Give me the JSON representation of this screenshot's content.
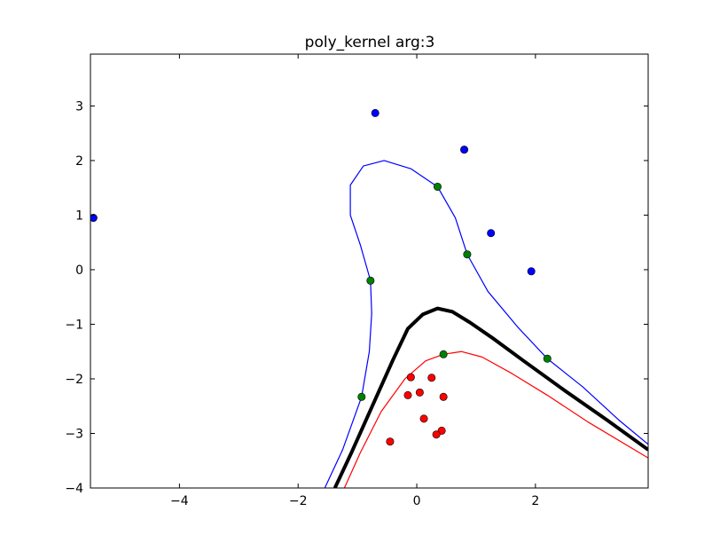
{
  "chart_data": {
    "type": "scatter",
    "title": "poly_kernel arg:3",
    "xlabel": "",
    "ylabel": "",
    "xlim": [
      -5.5,
      3.9
    ],
    "ylim": [
      -4,
      3.95
    ],
    "grid": false,
    "x_ticks": [
      -4,
      -2,
      0,
      2
    ],
    "x_tick_labels": [
      "−4",
      "−2",
      "0",
      "2"
    ],
    "y_ticks": [
      -4,
      -3,
      -2,
      -1,
      0,
      1,
      2,
      3
    ],
    "y_tick_labels": [
      "−4",
      "−3",
      "−2",
      "−1",
      "0",
      "1",
      "2",
      "3"
    ],
    "colors": {
      "class_positive": "#0000ff",
      "class_negative": "#ff0000",
      "support_vector": "#008000",
      "decision_boundary": "#000000",
      "margin_positive": "#0000ff",
      "margin_negative": "#ff0000"
    },
    "points": {
      "positive": [
        [
          -0.7,
          2.87
        ],
        [
          0.8,
          2.2
        ],
        [
          1.25,
          0.67
        ],
        [
          1.93,
          -0.03
        ],
        [
          -5.45,
          0.95
        ]
      ],
      "negative": [
        [
          -0.1,
          -1.97
        ],
        [
          0.25,
          -1.98
        ],
        [
          -0.15,
          -2.3
        ],
        [
          0.05,
          -2.25
        ],
        [
          0.45,
          -2.33
        ],
        [
          0.12,
          -2.73
        ],
        [
          0.42,
          -2.95
        ],
        [
          0.33,
          -3.02
        ],
        [
          -0.45,
          -3.15
        ]
      ],
      "support_vectors": [
        [
          0.35,
          1.52
        ],
        [
          0.85,
          0.28
        ],
        [
          -0.78,
          -0.2
        ],
        [
          0.45,
          -1.55
        ],
        [
          2.2,
          -1.63
        ],
        [
          -0.93,
          -2.33
        ]
      ]
    },
    "curves": {
      "decision_boundary": [
        [
          -1.38,
          -4.0
        ],
        [
          -1.1,
          -3.35
        ],
        [
          -0.75,
          -2.5
        ],
        [
          -0.4,
          -1.65
        ],
        [
          -0.15,
          -1.08
        ],
        [
          0.1,
          -0.82
        ],
        [
          0.35,
          -0.71
        ],
        [
          0.6,
          -0.77
        ],
        [
          0.9,
          -0.97
        ],
        [
          1.3,
          -1.27
        ],
        [
          1.8,
          -1.67
        ],
        [
          2.5,
          -2.22
        ],
        [
          3.2,
          -2.75
        ],
        [
          3.9,
          -3.3
        ]
      ],
      "margin_positive": [
        [
          -1.55,
          -4.0
        ],
        [
          -1.25,
          -3.3
        ],
        [
          -0.93,
          -2.33
        ],
        [
          -0.8,
          -1.5
        ],
        [
          -0.76,
          -0.8
        ],
        [
          -0.78,
          -0.2
        ],
        [
          -0.95,
          0.45
        ],
        [
          -1.12,
          1.0
        ],
        [
          -1.12,
          1.55
        ],
        [
          -0.9,
          1.9
        ],
        [
          -0.55,
          2.0
        ],
        [
          -0.1,
          1.85
        ],
        [
          0.35,
          1.52
        ],
        [
          0.65,
          0.95
        ],
        [
          0.85,
          0.28
        ],
        [
          1.2,
          -0.4
        ],
        [
          1.7,
          -1.05
        ],
        [
          2.2,
          -1.63
        ],
        [
          2.8,
          -2.15
        ],
        [
          3.4,
          -2.75
        ],
        [
          3.9,
          -3.2
        ]
      ],
      "margin_negative": [
        [
          -1.22,
          -4.0
        ],
        [
          -0.95,
          -3.35
        ],
        [
          -0.6,
          -2.6
        ],
        [
          -0.2,
          -2.0
        ],
        [
          0.15,
          -1.67
        ],
        [
          0.45,
          -1.55
        ],
        [
          0.75,
          -1.5
        ],
        [
          1.1,
          -1.6
        ],
        [
          1.6,
          -1.9
        ],
        [
          2.2,
          -2.3
        ],
        [
          2.9,
          -2.8
        ],
        [
          3.9,
          -3.45
        ]
      ]
    }
  }
}
